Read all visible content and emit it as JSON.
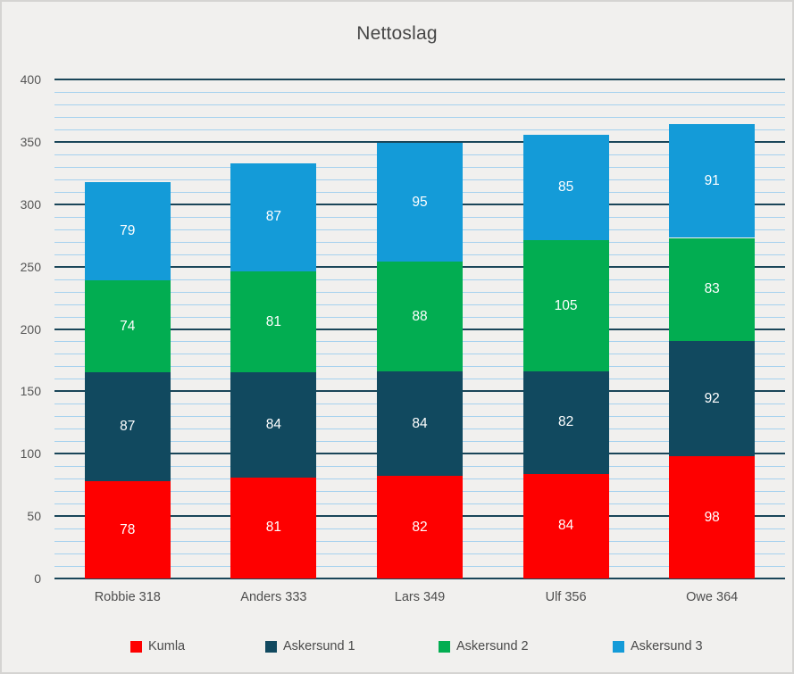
{
  "chart_data": {
    "type": "bar",
    "stacked": true,
    "title": "Nettoslag",
    "categories": [
      "Robbie 318",
      "Anders 333",
      "Lars 349",
      "Ulf 356",
      "Owe 364"
    ],
    "series": [
      {
        "name": "Kumla",
        "color": "#fe0000",
        "values": [
          78,
          81,
          82,
          84,
          98
        ]
      },
      {
        "name": "Askersund 1",
        "color": "#11495f",
        "values": [
          87,
          84,
          84,
          82,
          92
        ]
      },
      {
        "name": "Askersund 2",
        "color": "#02ad51",
        "values": [
          74,
          81,
          88,
          105,
          83
        ]
      },
      {
        "name": "Askersund 3",
        "color": "#149bd8",
        "values": [
          79,
          87,
          95,
          85,
          91
        ]
      }
    ],
    "totals": [
      318,
      333,
      349,
      356,
      364
    ],
    "y_axis": {
      "min": 0,
      "max": 400,
      "major_step": 50,
      "minor_step": 10,
      "tick_labels": [
        "0",
        "50",
        "100",
        "150",
        "200",
        "250",
        "300",
        "350",
        "400"
      ]
    },
    "gridlines": {
      "minor_on": true,
      "major_on": true,
      "minor_color": "#a5d1ee",
      "major_color": "#1a4659"
    },
    "legend_position": "bottom",
    "data_label_color": "#ffffff"
  }
}
